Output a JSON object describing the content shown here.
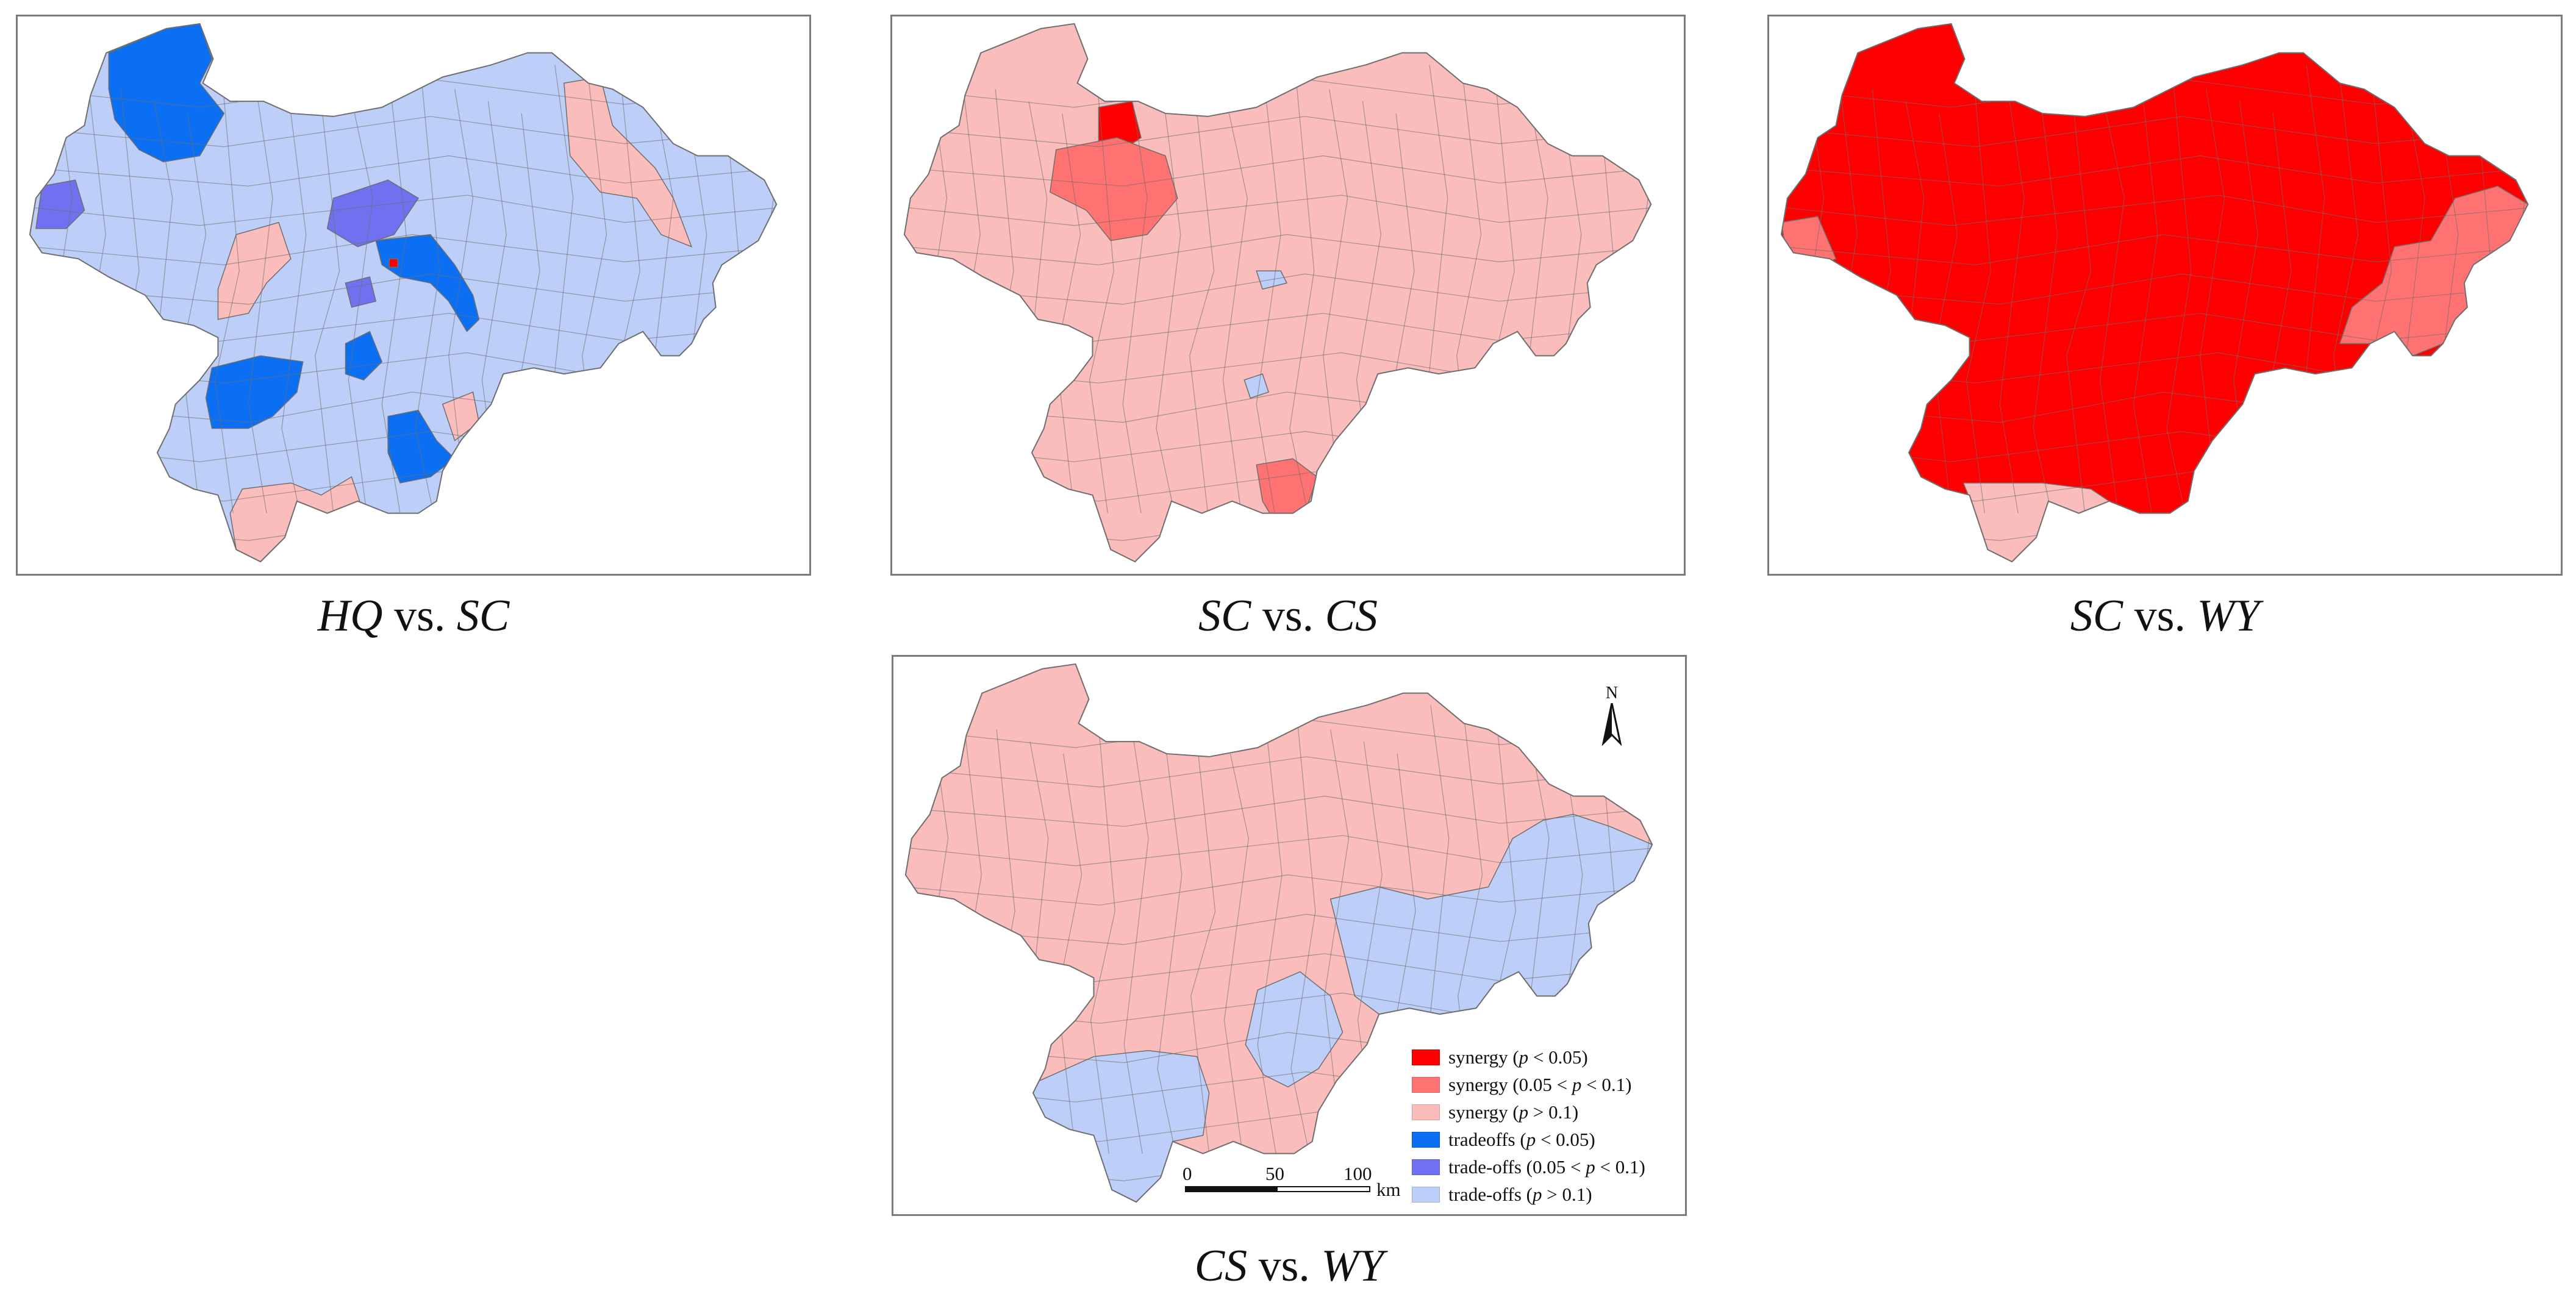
{
  "colors": {
    "synergy_p005": "#ff0000",
    "synergy_p01": "#ff7272",
    "synergy_ns": "#fbbcbc",
    "tradeoffs_p005": "#0a6ff2",
    "tradeoffs_p01": "#7070f0",
    "tradeoffs_ns": "#bdcff8",
    "boundary": "#6e6e6e"
  },
  "panels": [
    {
      "id": "hq-sc",
      "caption_a": "HQ",
      "caption_mid": " vs. ",
      "caption_b": "SC",
      "base": "tradeoffs_ns",
      "patches": [
        {
          "region": "nw",
          "cls": "tradeoffs_p005"
        },
        {
          "region": "west",
          "cls": "tradeoffs_p01"
        },
        {
          "region": "centre-n",
          "cls": "tradeoffs_p01"
        },
        {
          "region": "centre-s",
          "cls": "tradeoffs_p01"
        },
        {
          "region": "river",
          "cls": "tradeoffs_p005"
        },
        {
          "region": "sw",
          "cls": "tradeoffs_p005"
        },
        {
          "region": "centre-dot",
          "cls": "tradeoffs_p005"
        },
        {
          "region": "south",
          "cls": "tradeoffs_p005"
        },
        {
          "region": "ne",
          "cls": "synergy_ns"
        },
        {
          "region": "south-tail",
          "cls": "synergy_ns"
        },
        {
          "region": "mid-pink",
          "cls": "synergy_ns"
        },
        {
          "region": "se-pink",
          "cls": "synergy_ns"
        },
        {
          "region": "red-dot",
          "cls": "synergy_p005"
        }
      ]
    },
    {
      "id": "sc-cs",
      "caption_a": "SC",
      "caption_mid": " vs. ",
      "caption_b": "CS",
      "base": "synergy_ns",
      "patches": [
        {
          "region": "nw-top",
          "cls": "synergy_p005"
        },
        {
          "region": "nw-mid",
          "cls": "synergy_p01"
        },
        {
          "region": "south",
          "cls": "synergy_p01"
        },
        {
          "region": "blue1",
          "cls": "tradeoffs_ns"
        },
        {
          "region": "blue2",
          "cls": "tradeoffs_ns"
        }
      ]
    },
    {
      "id": "sc-wy",
      "caption_a": "SC",
      "caption_mid": " vs. ",
      "caption_b": "WY",
      "base": "synergy_p005",
      "patches": [
        {
          "region": "west-edge",
          "cls": "synergy_p01"
        },
        {
          "region": "east",
          "cls": "synergy_p01"
        },
        {
          "region": "south-tail",
          "cls": "synergy_ns"
        }
      ]
    },
    {
      "id": "cs-wy",
      "caption_a": "CS",
      "caption_mid": " vs. ",
      "caption_b": "WY",
      "base": "synergy_ns",
      "patches": [
        {
          "region": "east",
          "cls": "tradeoffs_ns"
        },
        {
          "region": "sw",
          "cls": "tradeoffs_ns"
        },
        {
          "region": "mid",
          "cls": "tradeoffs_ns"
        }
      ]
    }
  ],
  "legend": [
    {
      "key": "synergy_p005",
      "text": "synergy (",
      "p": "p",
      "rest": " < 0.05)"
    },
    {
      "key": "synergy_p01",
      "text": "synergy (0.05 < ",
      "p": "p",
      "rest": " < 0.1)"
    },
    {
      "key": "synergy_ns",
      "text": "synergy (",
      "p": "p",
      "rest": " > 0.1)"
    },
    {
      "key": "tradeoffs_p005",
      "text": "tradeoffs (",
      "p": "p",
      "rest": " < 0.05)"
    },
    {
      "key": "tradeoffs_p01",
      "text": "trade-offs (0.05 < ",
      "p": "p",
      "rest": " < 0.1)"
    },
    {
      "key": "tradeoffs_ns",
      "text": "trade-offs (",
      "p": "p",
      "rest": " > 0.1)"
    }
  ],
  "scalebar": {
    "ticks": [
      "0",
      "50",
      "100"
    ],
    "unit": "km"
  },
  "north_label": "N"
}
